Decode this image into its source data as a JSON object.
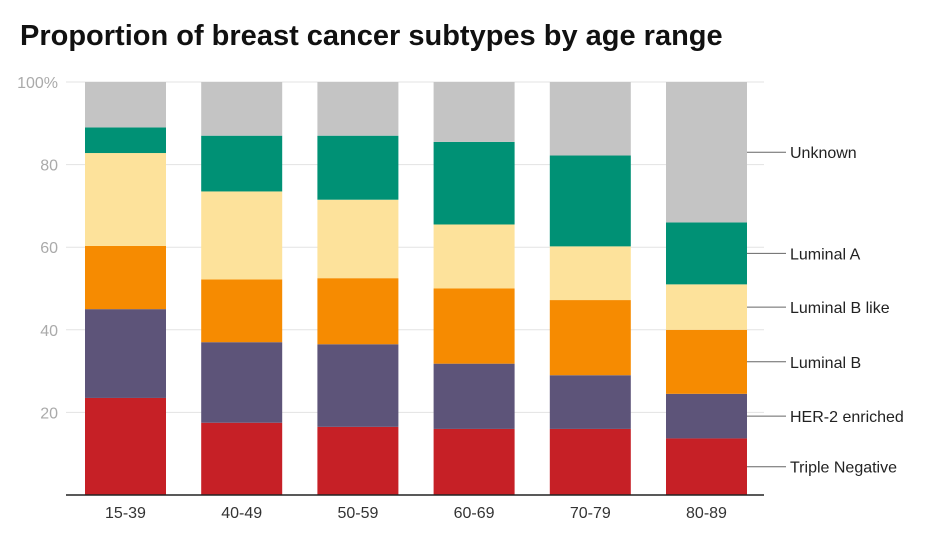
{
  "chart_data": {
    "type": "bar",
    "stacked": true,
    "percent_stacked": true,
    "title": "Proportion of breast cancer subtypes by age range",
    "xlabel": "",
    "ylabel": "",
    "categories": [
      "15-39",
      "40-49",
      "50-59",
      "60-69",
      "70-79",
      "80-89"
    ],
    "ylim": [
      0,
      100
    ],
    "yticks": [
      {
        "value": 20,
        "label": "20"
      },
      {
        "value": 40,
        "label": "40"
      },
      {
        "value": 60,
        "label": "60"
      },
      {
        "value": 80,
        "label": "80"
      },
      {
        "value": 100,
        "label": "100%"
      }
    ],
    "grid": true,
    "legend": "right",
    "series": [
      {
        "name": "Triple Negative",
        "color": "#c62026",
        "values": [
          23.5,
          17.5,
          16.5,
          16,
          16,
          13.7
        ]
      },
      {
        "name": "HER-2 enriched",
        "color": "#5d5479",
        "values": [
          21.5,
          19.5,
          20,
          15.8,
          13,
          10.8
        ]
      },
      {
        "name": "Luminal B",
        "color": "#f68b01",
        "values": [
          15.3,
          15.2,
          16,
          18.2,
          18.2,
          15.5
        ]
      },
      {
        "name": "Luminal B like",
        "color": "#fde29b",
        "values": [
          22.5,
          21.3,
          19,
          15.5,
          13,
          11
        ]
      },
      {
        "name": "Luminal A",
        "color": "#009175",
        "values": [
          6.2,
          13.5,
          15.5,
          20,
          22,
          15
        ]
      },
      {
        "name": "Unknown",
        "color": "#c4c4c4",
        "values": [
          11,
          13,
          13,
          14.5,
          17.8,
          34
        ]
      }
    ]
  }
}
